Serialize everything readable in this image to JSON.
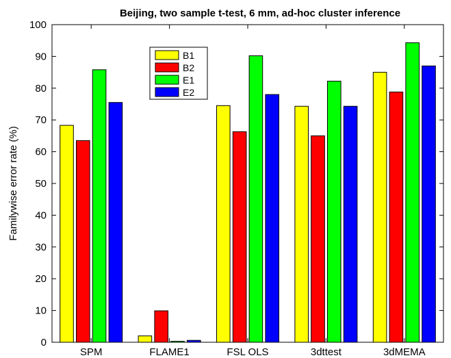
{
  "chart_data": {
    "type": "bar",
    "title": "Beijing, two sample t-test, 6 mm, ad-hoc cluster inference",
    "xlabel": "",
    "ylabel": "Familywise error rate (%)",
    "ylim": [
      0,
      100
    ],
    "yticks": [
      0,
      10,
      20,
      30,
      40,
      50,
      60,
      70,
      80,
      90,
      100
    ],
    "categories": [
      "SPM",
      "FLAME1",
      "FSL OLS",
      "3dttest",
      "3dMEMA"
    ],
    "series": [
      {
        "name": "B1",
        "color": "#ffff00",
        "values": [
          68.3,
          2.0,
          74.5,
          74.3,
          85.0
        ]
      },
      {
        "name": "B2",
        "color": "#ff0000",
        "values": [
          63.5,
          9.9,
          66.3,
          65.0,
          78.8
        ]
      },
      {
        "name": "E1",
        "color": "#00ff00",
        "values": [
          85.8,
          0.3,
          90.2,
          82.2,
          94.3
        ]
      },
      {
        "name": "E2",
        "color": "#0000ff",
        "values": [
          75.5,
          0.6,
          78.0,
          74.3,
          87.0
        ]
      }
    ],
    "legend_position": "top-left",
    "grid": false
  }
}
